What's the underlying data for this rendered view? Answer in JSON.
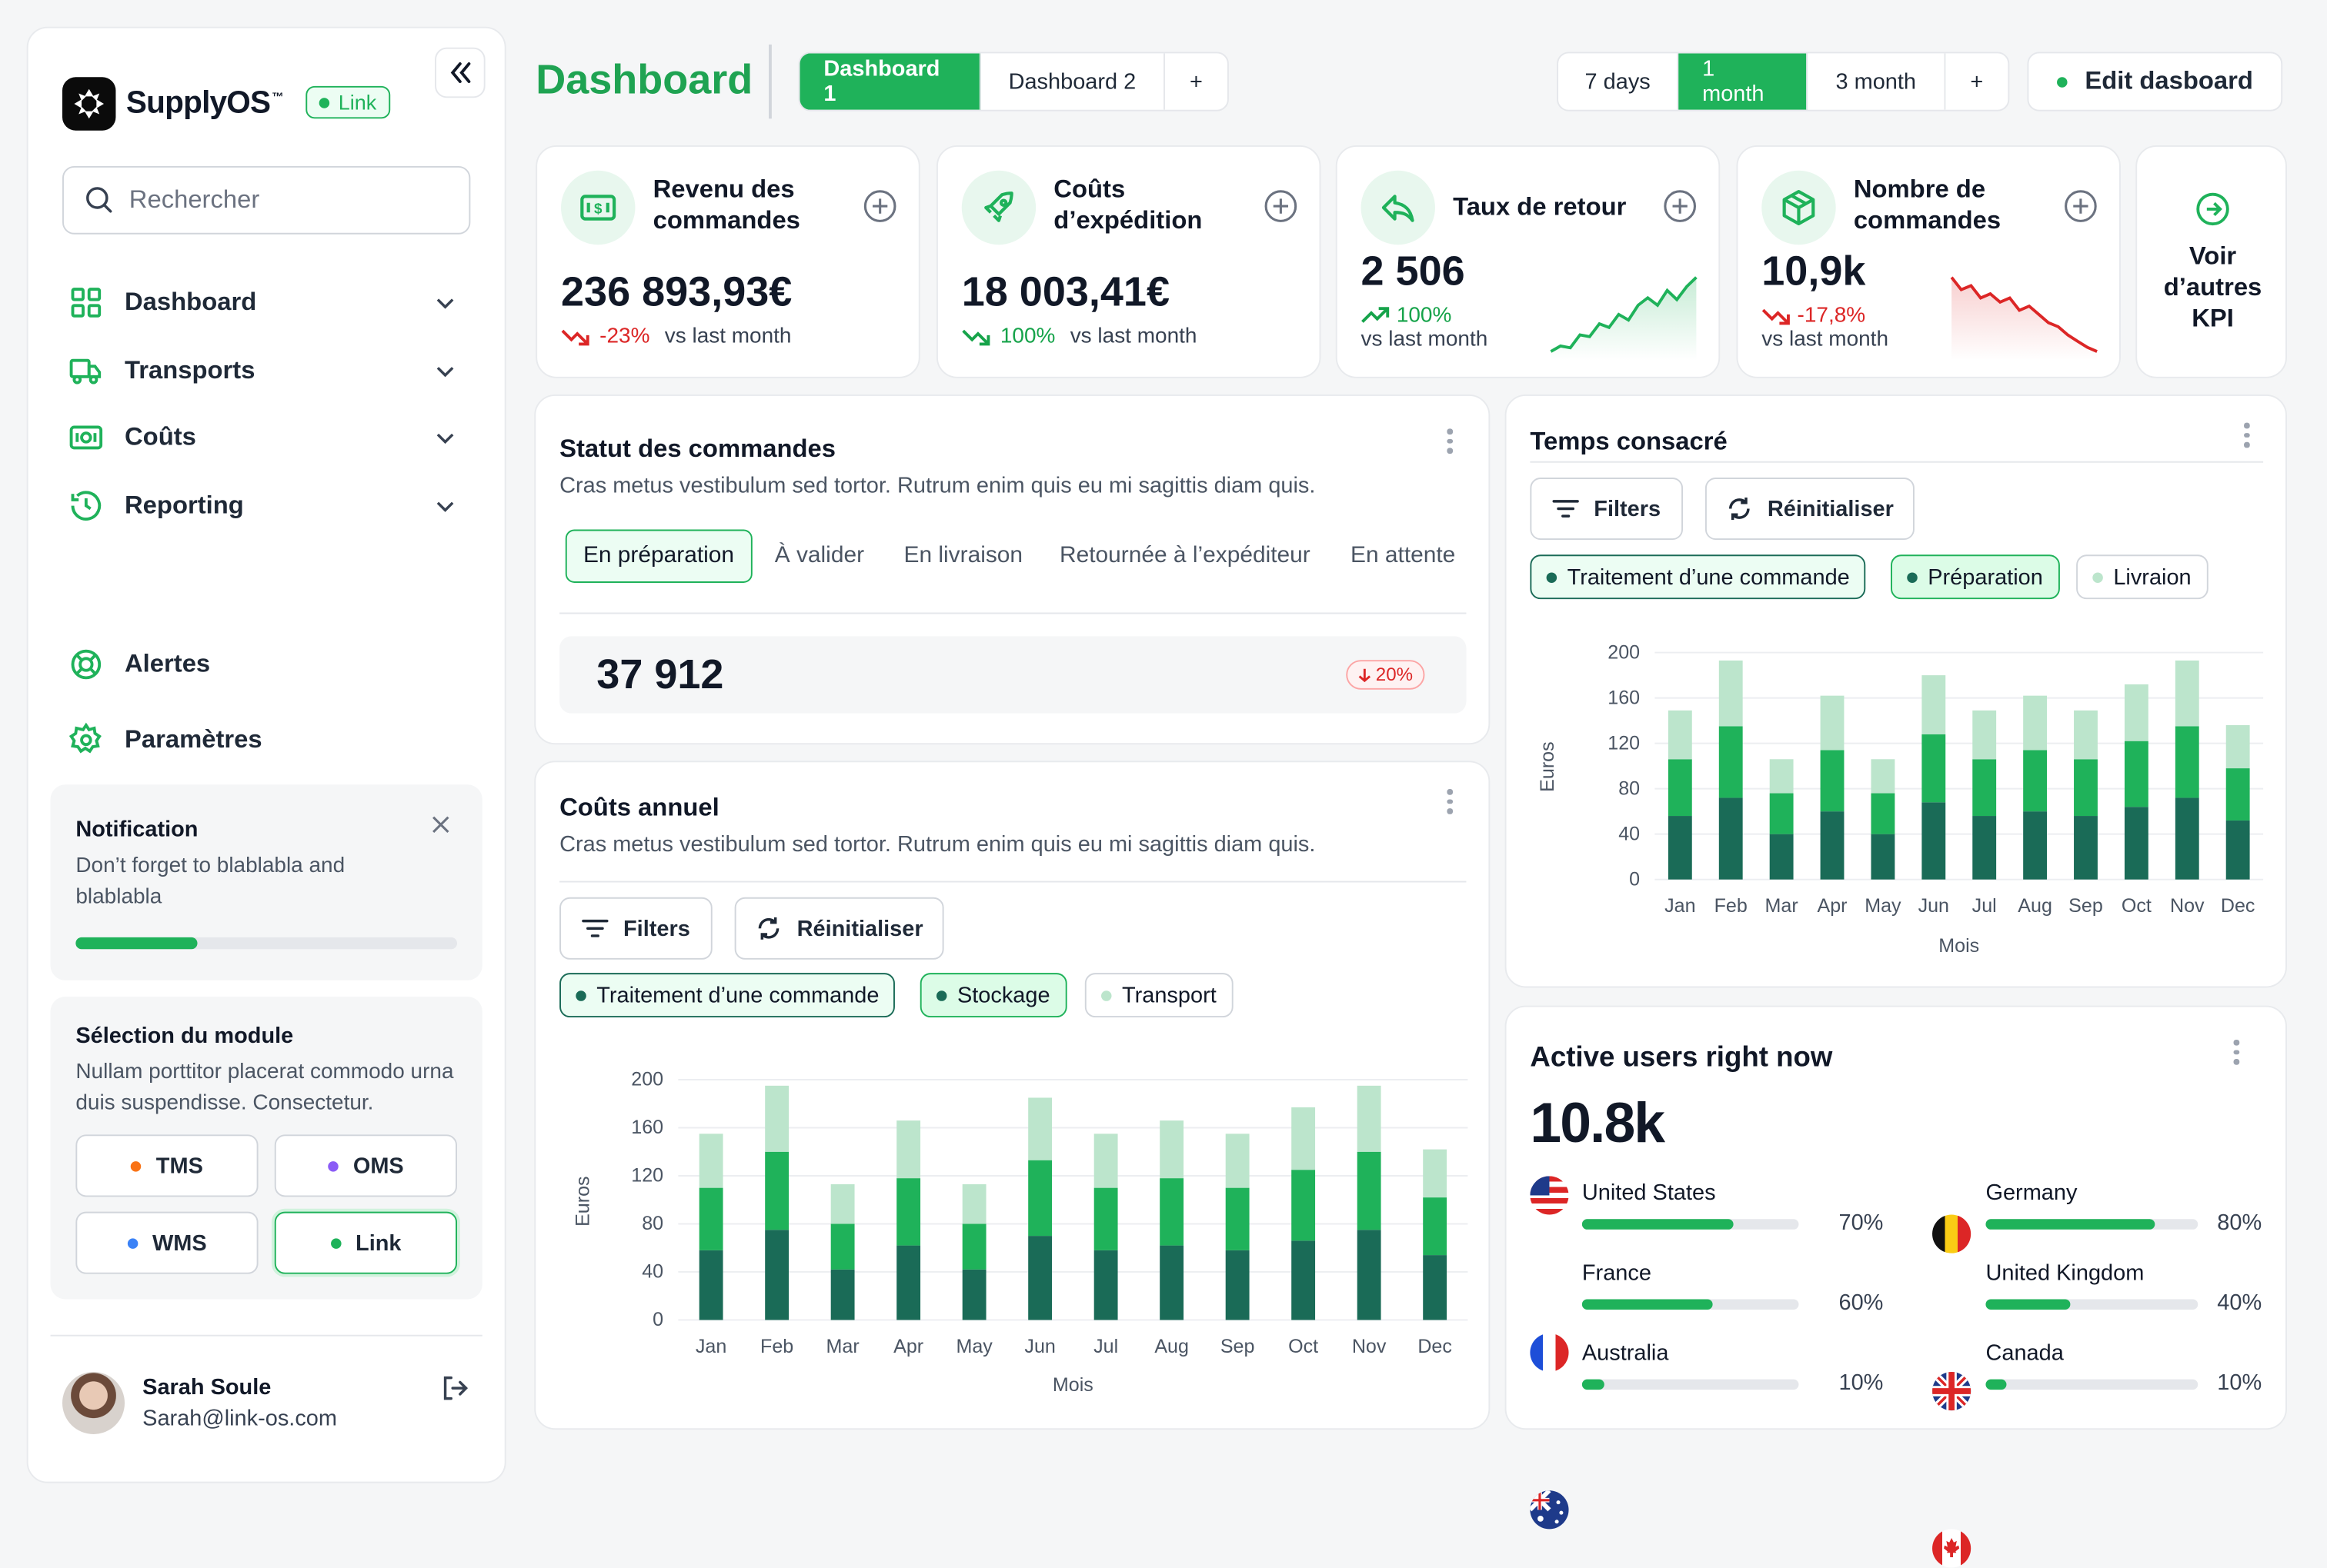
{
  "app": {
    "logo": "SupplyOS",
    "trademark": "™",
    "badge": "Link"
  },
  "sidebar": {
    "search_placeholder": "Rechercher",
    "nav": [
      {
        "label": "Dashboard"
      },
      {
        "label": "Transports"
      },
      {
        "label": "Coûts"
      },
      {
        "label": "Reporting"
      }
    ],
    "bottom_nav": [
      {
        "label": "Alertes"
      },
      {
        "label": "Paramètres"
      }
    ],
    "notification": {
      "title": "Notification",
      "text": "Don’t forget to blablabla and blablabla",
      "progress": 0.32
    },
    "module": {
      "title": "Sélection du module",
      "text": "Nullam porttitor placerat commodo urna duis suspendisse. Consectetur.",
      "options": [
        {
          "label": "TMS",
          "color": "#f97316"
        },
        {
          "label": "OMS",
          "color": "#8b5cf6"
        },
        {
          "label": "WMS",
          "color": "#3b82f6"
        },
        {
          "label": "Link",
          "color": "#1fb25a",
          "selected": true
        }
      ]
    },
    "user": {
      "name": "Sarah Soule",
      "email": "Sarah@link-os.com"
    }
  },
  "header": {
    "title": "Dashboard",
    "tabs": [
      "Dashboard 1",
      "Dashboard 2",
      "+"
    ],
    "active_tab": 0,
    "ranges": [
      "7 days",
      "1 month",
      "3 month",
      "+"
    ],
    "active_range": 1,
    "edit_label": "Edit dasboard"
  },
  "kpis": [
    {
      "title": "Revenu des commandes",
      "value": "236 893,93€",
      "delta": "-23%",
      "trend": "down",
      "compare": "vs last month",
      "icon": "money-icon"
    },
    {
      "title": "Coûts d’expédition",
      "value": "18 003,41€",
      "delta": "100%",
      "trend": "up",
      "compare": "vs last month",
      "icon": "rocket-icon"
    },
    {
      "title": "Taux de retour",
      "value": "2 506",
      "delta": "100%",
      "trend": "up",
      "compare": "vs last month",
      "icon": "return-icon"
    },
    {
      "title": "Nombre de commandes",
      "value": "10,9k",
      "delta": "-17,8%",
      "trend": "down",
      "compare": "vs last month",
      "icon": "box-icon"
    }
  ],
  "more_kpi": "Voir d’autres KPI",
  "status": {
    "title": "Statut des commandes",
    "subtitle": "Cras metus vestibulum sed tortor. Rutrum enim quis eu mi sagittis diam quis.",
    "tabs": [
      "En préparation",
      "À valider",
      "En livraison",
      "Retournée à l’expéditeur",
      "En attente"
    ],
    "active_tab": 0,
    "value": "37 912",
    "delta": "20%"
  },
  "annual": {
    "title": "Coûts annuel",
    "subtitle": "Cras metus vestibulum sed tortor. Rutrum enim quis eu mi sagittis diam quis.",
    "filters_label": "Filters",
    "reset_label": "Réinitialiser",
    "chips": [
      "Traitement d’une commande",
      "Stockage",
      "Transport"
    ]
  },
  "time": {
    "title": "Temps consacré",
    "filters_label": "Filters",
    "reset_label": "Réinitialiser",
    "chips": [
      "Traitement d’une commande",
      "Préparation",
      "Livraion"
    ]
  },
  "active_users": {
    "title": "Active users right now",
    "value": "10.8k",
    "countries": [
      {
        "name": "United States",
        "pct": "70%",
        "value": 0.7
      },
      {
        "name": "Germany",
        "pct": "80%",
        "value": 0.8
      },
      {
        "name": "France",
        "pct": "60%",
        "value": 0.6
      },
      {
        "name": "United Kingdom",
        "pct": "40%",
        "value": 0.4
      },
      {
        "name": "Australia",
        "pct": "10%",
        "value": 0.1
      },
      {
        "name": "Canada",
        "pct": "10%",
        "value": 0.1
      }
    ]
  },
  "colors": {
    "accent": "#1fb25a",
    "dark": "#1a6b57",
    "light": "#bce5cc"
  },
  "chart_data": [
    {
      "type": "bar",
      "stacked": true,
      "ylabel": "Euros",
      "xlabel": "Mois",
      "ylim": [
        0,
        200
      ],
      "yticks": [
        0,
        40,
        80,
        120,
        160,
        200
      ],
      "categories": [
        "Jan",
        "Feb",
        "Mar",
        "Apr",
        "May",
        "Jun",
        "Jul",
        "Aug",
        "Sep",
        "Oct",
        "Nov",
        "Dec"
      ],
      "series": [
        {
          "name": "Traitement d’une commande",
          "color": "#1a6b57",
          "values": [
            58,
            75,
            42,
            62,
            42,
            70,
            58,
            62,
            58,
            66,
            75,
            54
          ]
        },
        {
          "name": "Stockage",
          "color": "#1fb25a",
          "values": [
            52,
            65,
            38,
            56,
            38,
            63,
            52,
            56,
            52,
            59,
            65,
            48
          ]
        },
        {
          "name": "Transport",
          "color": "#bce5cc",
          "values": [
            45,
            55,
            33,
            48,
            33,
            52,
            45,
            48,
            45,
            52,
            55,
            40
          ]
        }
      ]
    },
    {
      "type": "bar",
      "stacked": true,
      "ylabel": "Euros",
      "xlabel": "Mois",
      "ylim": [
        0,
        200
      ],
      "yticks": [
        0,
        40,
        80,
        120,
        160,
        200
      ],
      "categories": [
        "Jan",
        "Feb",
        "Mar",
        "Apr",
        "May",
        "Jun",
        "Jul",
        "Aug",
        "Sep",
        "Oct",
        "Nov",
        "Dec"
      ],
      "series": [
        {
          "name": "Traitement d’une commande",
          "color": "#1a6b57",
          "values": [
            56,
            72,
            40,
            60,
            40,
            68,
            56,
            60,
            56,
            64,
            72,
            52
          ]
        },
        {
          "name": "Préparation",
          "color": "#1fb25a",
          "values": [
            50,
            63,
            36,
            54,
            36,
            60,
            50,
            54,
            50,
            58,
            63,
            46
          ]
        },
        {
          "name": "Livraion",
          "color": "#bce5cc",
          "values": [
            43,
            58,
            30,
            48,
            30,
            52,
            43,
            48,
            43,
            50,
            58,
            38
          ]
        }
      ]
    },
    {
      "type": "line",
      "sparkline": true,
      "values": [
        5,
        8,
        7,
        14,
        13,
        20,
        18,
        25,
        22,
        30,
        34,
        30,
        38,
        33,
        40,
        45
      ]
    },
    {
      "type": "line",
      "sparkline": true,
      "values": [
        40,
        34,
        36,
        30,
        32,
        28,
        30,
        24,
        26,
        22,
        18,
        16,
        12,
        9,
        6,
        4
      ]
    }
  ]
}
